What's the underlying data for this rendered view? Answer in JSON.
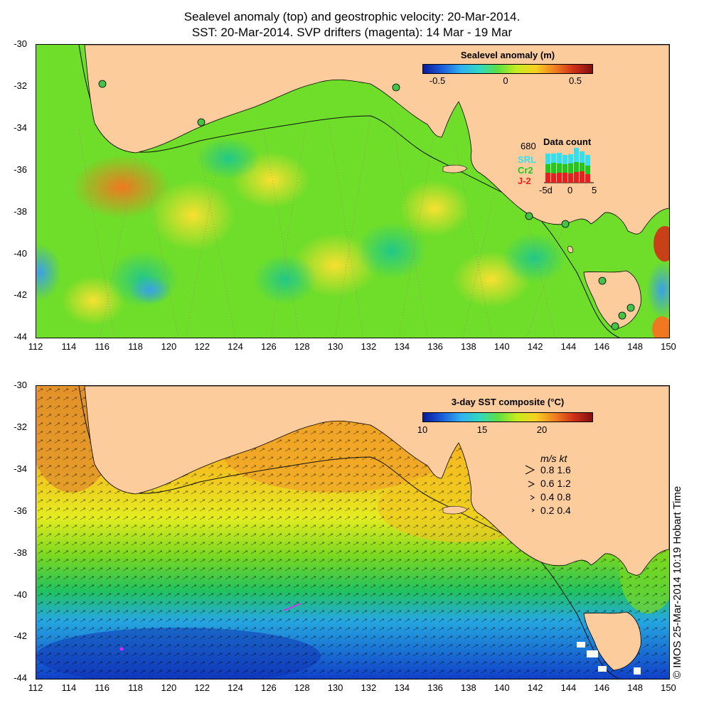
{
  "title_line1": "Sealevel anomaly (top) and geostrophic velocity: 20-Mar-2014.",
  "title_line2": "SST: 20-Mar-2014. SVP drifters (magenta): 14 Mar - 19 Mar",
  "y_ticks": [
    "-30",
    "-32",
    "-34",
    "-36",
    "-38",
    "-40",
    "-42",
    "-44"
  ],
  "x_ticks": [
    "112",
    "114",
    "116",
    "118",
    "120",
    "122",
    "124",
    "126",
    "128",
    "130",
    "132",
    "134",
    "136",
    "138",
    "140",
    "142",
    "144",
    "146",
    "148",
    "150"
  ],
  "top_panel": {
    "colorbar_title": "Sealevel anomaly (m)",
    "colorbar_labels": [
      "-0.5",
      "0",
      "0.5"
    ],
    "data_count_title": "Data count",
    "data_count_max": "680",
    "satellites": [
      {
        "name": "SRL",
        "color": "#33e0f0"
      },
      {
        "name": "Cr2",
        "color": "#22c822"
      },
      {
        "name": "J-2",
        "color": "#ee1c1c"
      }
    ],
    "data_count_axis": [
      "-5d",
      "0",
      "5"
    ]
  },
  "bottom_panel": {
    "colorbar_title": "3-day SST composite (°C)",
    "colorbar_labels": [
      "10",
      "15",
      "20"
    ],
    "velocity_legend_header": "m/s  kt",
    "velocity_legend": [
      "0.8  1.6",
      "0.6  1.2",
      "0.4  0.8",
      "0.2  0.4"
    ]
  },
  "credit": "© IMOS 25-Mar-2014 10:19 Hobart Time",
  "colors": {
    "land": "#fccc9c",
    "ocean_top": "#66dd22",
    "ocean_bottom_warm": "#f0a028",
    "ocean_bottom_cold": "#1a5cd8"
  }
}
